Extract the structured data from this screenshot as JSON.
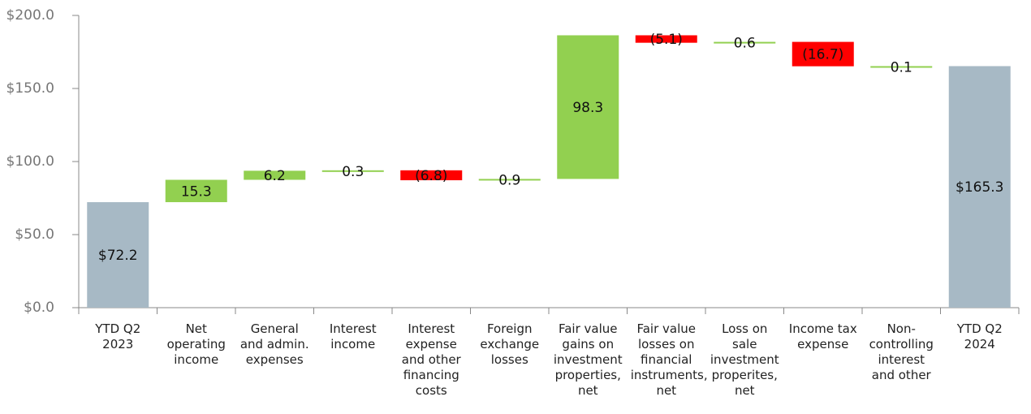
{
  "chart_data": {
    "type": "waterfall",
    "categories": [
      "YTD Q2 2023",
      "Net operating income",
      "General and admin. expenses",
      "Interest income",
      "Interest expense and other financing costs",
      "Foreign exchange losses",
      "Fair value gains on investment properties, net",
      "Fair value losses on financial instruments, net",
      "Loss on sale investment properites, net",
      "Income tax expense",
      "Non-controlling interest and other",
      "YTD Q2 2024"
    ],
    "values": [
      72.2,
      15.3,
      6.2,
      0.3,
      -6.8,
      0.9,
      98.3,
      -5.1,
      0.6,
      -16.7,
      0.1,
      165.3
    ],
    "value_labels": [
      "$72.2",
      "15.3",
      "6.2",
      "0.3",
      "(6.8)",
      "0.9",
      "98.3",
      "(5.1)",
      "0.6",
      "(16.7)",
      "0.1",
      "$165.3"
    ],
    "measure": [
      "absolute",
      "relative",
      "relative",
      "relative",
      "relative",
      "relative",
      "relative",
      "relative",
      "relative",
      "relative",
      "relative",
      "absolute"
    ],
    "colors": [
      "#a7b9c5",
      "#92d050",
      "#92d050",
      "#92d050",
      "#ff0000",
      "#92d050",
      "#92d050",
      "#ff0000",
      "#92d050",
      "#ff0000",
      "#92d050",
      "#a7b9c5"
    ],
    "ylim": [
      0,
      200
    ],
    "yticks": [
      {
        "value": 0,
        "label": "$0.0"
      },
      {
        "value": 50,
        "label": "$50.0"
      },
      {
        "value": 100,
        "label": "$100.0"
      },
      {
        "value": 150,
        "label": "$150.0"
      },
      {
        "value": 200,
        "label": "$200.0"
      }
    ],
    "grid": false
  }
}
